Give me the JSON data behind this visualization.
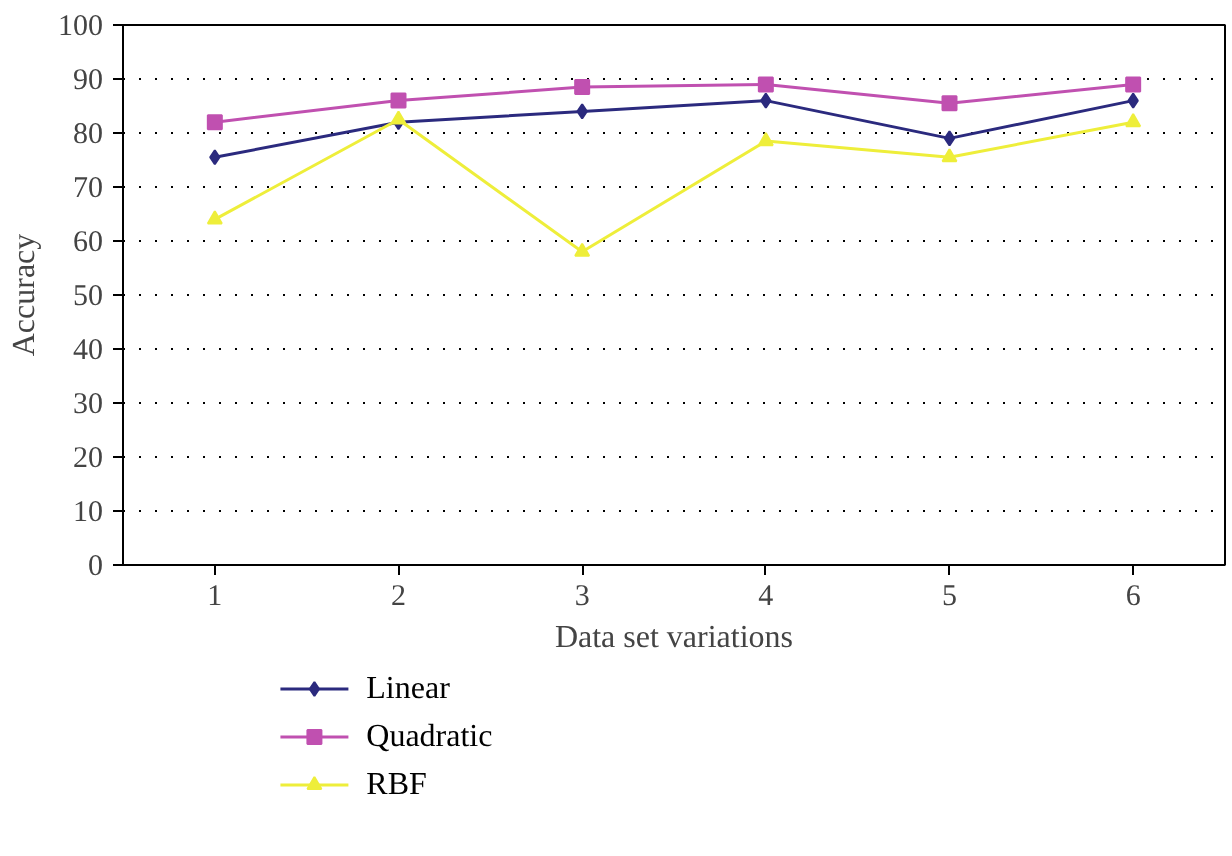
{
  "chart_data": {
    "type": "line",
    "xlabel": "Data set variations",
    "ylabel": "Accuracy",
    "categories": [
      "1",
      "2",
      "3",
      "4",
      "5",
      "6"
    ],
    "ylim": [
      0,
      100
    ],
    "yticks": [
      0,
      10,
      20,
      30,
      40,
      50,
      60,
      70,
      80,
      90,
      100
    ],
    "grid": "y",
    "legend": "bottom left",
    "line_style": "solid",
    "series": [
      {
        "name": "Linear",
        "color": "#2b2a7e",
        "marker": "diamond",
        "values": [
          75.5,
          82,
          84,
          86,
          79,
          86
        ]
      },
      {
        "name": "Quadratic",
        "color": "#c050b0",
        "marker": "square",
        "values": [
          82,
          86,
          88.5,
          89,
          85.5,
          89
        ]
      },
      {
        "name": "RBF",
        "color": "#eeee3a",
        "marker": "triangle",
        "values": [
          64,
          82.5,
          58,
          78.5,
          75.5,
          82
        ]
      }
    ]
  }
}
